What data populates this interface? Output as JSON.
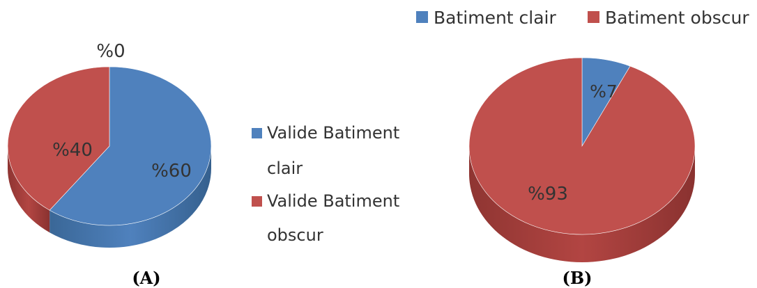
{
  "colors": {
    "blue": "#4f81bd",
    "red": "#c0504d"
  },
  "chart_data": [
    {
      "type": "pie",
      "caption": "(A)",
      "slices": [
        {
          "name": "Valide Batiment clair",
          "value": 60,
          "label": "%60",
          "color": "#4f81bd"
        },
        {
          "name": "Valide Batiment obscur",
          "value": 40,
          "label": "%40",
          "color": "#c0504d"
        }
      ],
      "extra_labels": [
        "%0"
      ],
      "legend": {
        "placement": "right",
        "items": [
          {
            "line1": "Valide Batiment",
            "line2": "clair",
            "color": "#4f81bd"
          },
          {
            "line1": "Valide Batiment",
            "line2": "obscur",
            "color": "#c0504d"
          }
        ]
      }
    },
    {
      "type": "pie",
      "caption": "(B)",
      "slices": [
        {
          "name": "Batiment clair",
          "value": 7,
          "label": "%7",
          "color": "#4f81bd"
        },
        {
          "name": "Batiment obscur",
          "value": 93,
          "label": "%93",
          "color": "#c0504d"
        }
      ],
      "legend": {
        "placement": "top",
        "items": [
          {
            "text": "Batiment clair",
            "color": "#4f81bd"
          },
          {
            "text": "Batiment obscur",
            "color": "#c0504d"
          }
        ]
      }
    }
  ]
}
